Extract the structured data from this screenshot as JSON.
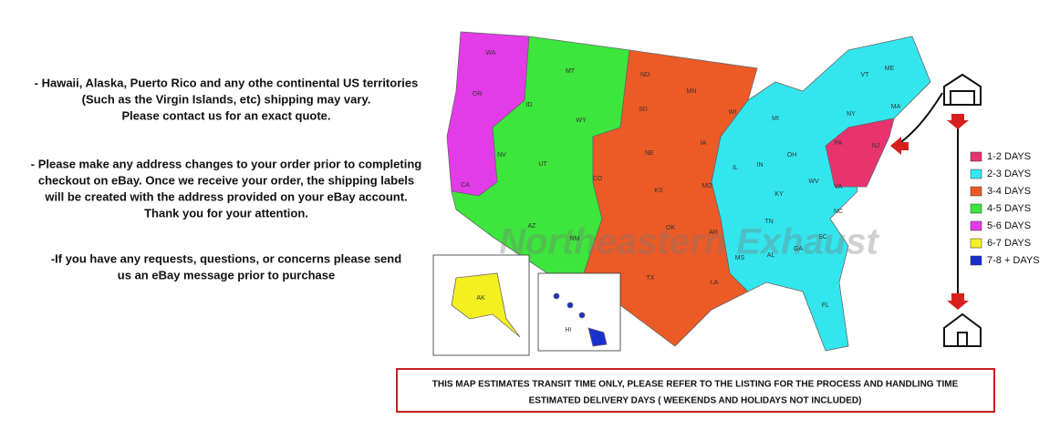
{
  "notes": [
    [
      "- Hawaii, Alaska, Puerto Rico and any othe continental US territories",
      "(Such as the Virgin Islands, etc) shipping may vary.",
      "Please contact us for an exact quote."
    ],
    [
      "- Please make any address changes to your order prior to completing",
      "checkout on eBay. Once we receive your order, the shipping labels",
      "will be created with the address provided on your eBay account.",
      "Thank you for your attention."
    ],
    [
      "-If you have any requests, questions, or concerns please send",
      "us an eBay message prior to purchase"
    ]
  ],
  "legend": [
    {
      "label": "1-2 DAYS",
      "color": "#e8336f"
    },
    {
      "label": "2-3 DAYS",
      "color": "#33e6ee"
    },
    {
      "label": "3-4 DAYS",
      "color": "#ec5a26"
    },
    {
      "label": "4-5 DAYS",
      "color": "#3ce63c"
    },
    {
      "label": "5-6 DAYS",
      "color": "#e33be8"
    },
    {
      "label": "6-7 DAYS",
      "color": "#f4f020"
    },
    {
      "label": "7-8 + DAYS",
      "color": "#1a2fd0"
    }
  ],
  "states": [
    "WA",
    "OR",
    "CA",
    "ID",
    "NV",
    "MT",
    "WY",
    "UT",
    "AZ",
    "NM",
    "CO",
    "ND",
    "SD",
    "NE",
    "KS",
    "OK",
    "TX",
    "MN",
    "IA",
    "MO",
    "AR",
    "LA",
    "WI",
    "IL",
    "MI",
    "IN",
    "OH",
    "KY",
    "TN",
    "MS",
    "AL",
    "GA",
    "FL",
    "SC",
    "NC",
    "VA",
    "WV",
    "PA",
    "NY",
    "NJ",
    "VT",
    "ME",
    "MA",
    "AK",
    "HI"
  ],
  "watermark": "Northeastern Exhaust",
  "notice": [
    "THIS MAP ESTIMATES TRANSIT TIME ONLY, PLEASE REFER TO THE LISTING FOR THE PROCESS AND HANDLING TIME",
    "ESTIMATED DELIVERY DAYS ( WEEKENDS AND HOLIDAYS NOT INCLUDED)"
  ]
}
